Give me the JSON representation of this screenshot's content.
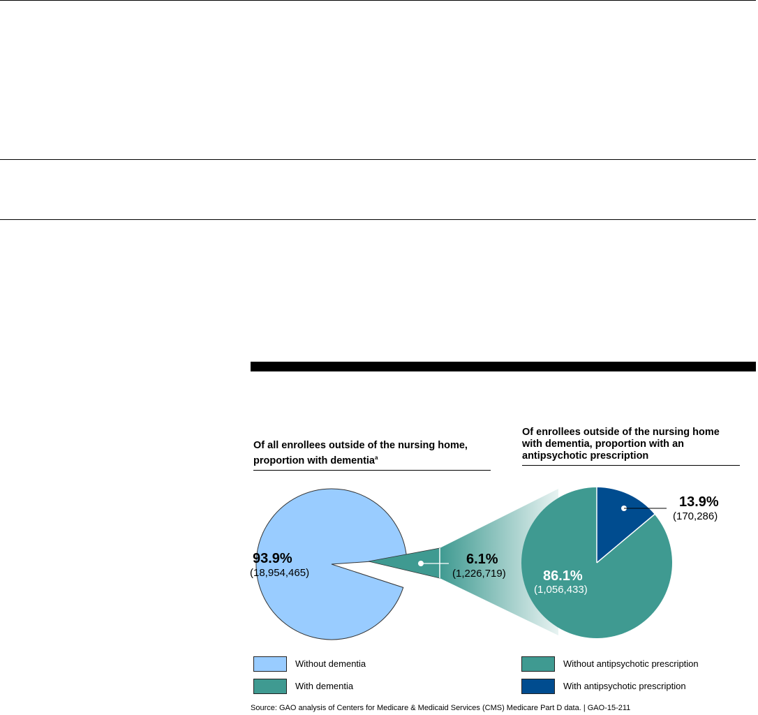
{
  "panels": {
    "left_title_line1": "Of all enrollees outside of the nursing home,",
    "left_title_line2": "proportion with dementia",
    "left_title_footnote": "a",
    "right_title_line1": "Of enrollees outside of the nursing home",
    "right_title_line2": "with dementia, proportion with an",
    "right_title_line3": "antipsychotic prescription"
  },
  "chart_data": [
    {
      "type": "pie",
      "slices": [
        {
          "label": "Without dementia",
          "percent": 93.9,
          "count": 18954465,
          "percent_text": "93.9%",
          "count_text": "(18,954,465)",
          "color": "#99ccff"
        },
        {
          "label": "With dementia",
          "percent": 6.1,
          "count": 1226719,
          "percent_text": "6.1%",
          "count_text": "(1,226,719)",
          "color": "#3f9a91"
        }
      ]
    },
    {
      "type": "pie",
      "slices": [
        {
          "label": "Without antipsychotic prescription",
          "percent": 86.1,
          "count": 1056433,
          "percent_text": "86.1%",
          "count_text": "(1,056,433)",
          "color": "#3f9a91"
        },
        {
          "label": "With antipsychotic prescription",
          "percent": 13.9,
          "count": 170286,
          "percent_text": "13.9%",
          "count_text": "(170,286)",
          "color": "#004c8f"
        }
      ]
    }
  ],
  "legend": {
    "left": [
      {
        "label": "Without dementia",
        "color": "#99ccff"
      },
      {
        "label": "With dementia",
        "color": "#3f9a91"
      }
    ],
    "right": [
      {
        "label": "Without antipsychotic prescription",
        "color": "#3f9a91"
      },
      {
        "label": "With antipsychotic prescription",
        "color": "#004c8f"
      }
    ]
  },
  "source": "Source: GAO analysis of Centers for Medicare & Medicaid Services (CMS) Medicare Part D data.  |  GAO-15-211"
}
